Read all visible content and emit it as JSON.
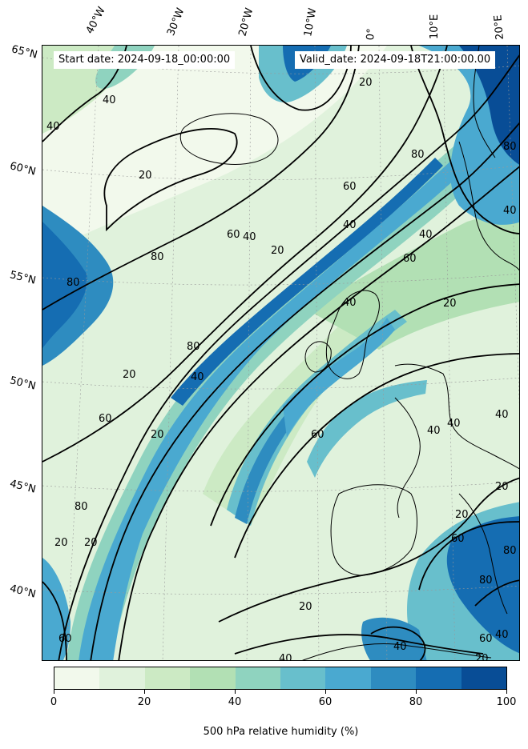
{
  "header": {
    "start_date": "Start date: 2024-09-18_00:00:00",
    "valid_date": "Valid_date: 2024-09-18T21:00:00.00"
  },
  "map": {
    "longitude_labels": [
      "40°W",
      "30°W",
      "20°W",
      "10°W",
      "0°",
      "10°E",
      "20°E"
    ],
    "latitude_labels": [
      "65°N",
      "60°N",
      "55°N",
      "50°N",
      "45°N",
      "40°N"
    ],
    "contour_labels": [
      "20",
      "40",
      "60",
      "80"
    ]
  },
  "colorbar": {
    "label": "500 hPa relative humidity (%)",
    "ticks": [
      "0",
      "20",
      "40",
      "60",
      "80",
      "100"
    ],
    "colors": [
      "#f2f9ec",
      "#e0f2dc",
      "#cceac4",
      "#b2e0b4",
      "#8fd3bf",
      "#68bfcc",
      "#4aa9d0",
      "#2e8cc0",
      "#156db2",
      "#084d96"
    ]
  },
  "colors": {
    "land_outline": "#000000",
    "contour": "#000000"
  }
}
